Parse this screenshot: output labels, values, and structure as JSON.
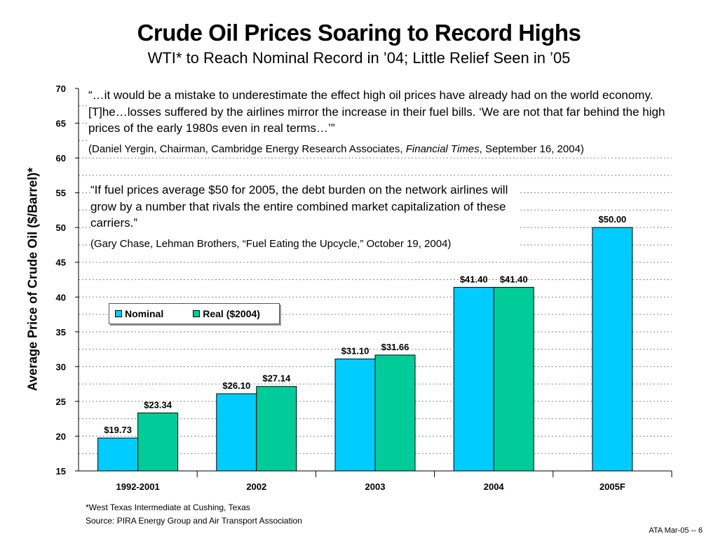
{
  "slide": {
    "title": "Crude Oil Prices Soaring to Record Highs",
    "subtitle": "WTI* to Reach Nominal Record in ’04; Little Relief Seen in ’05",
    "footnote": "*West Texas Intermediate at Cushing, Texas",
    "source": "Source: PIRA Energy Group and Air Transport Association",
    "slide_number": "ATA Mar-05 -- 6"
  },
  "quotes": [
    {
      "text": "“…it would be a mistake to underestimate the effect high oil prices have already had on the world economy. [T]he…losses suffered by the airlines mirror the increase in their fuel bills. ‘We are not that far behind the high prices of the early 1980s even in real terms…’”",
      "attribution_prefix": "(Daniel Yergin, Chairman, Cambridge Energy Research Associates, ",
      "attribution_publication": "Financial Times",
      "attribution_suffix": ", September 16, 2004)"
    },
    {
      "text": "“If fuel prices average $50 for 2005, the debt burden on the network airlines will grow by a number that rivals the entire combined market capitalization of these carriers.”",
      "attribution": "(Gary Chase, Lehman Brothers, “Fuel Eating the Upcycle,” October 19, 2004)"
    }
  ],
  "chart_data": {
    "type": "bar",
    "title": "",
    "xlabel": "",
    "ylabel": "Average Price of Crude Oil ($/Barrel)*",
    "ylim": [
      15,
      70
    ],
    "yticks": [
      15,
      20,
      25,
      30,
      35,
      40,
      45,
      50,
      55,
      60,
      65,
      70
    ],
    "grid": "dotted horizontal gridlines",
    "legend_position": "left, middle",
    "categories": [
      "1992-2001",
      "2002",
      "2003",
      "2004",
      "2005F"
    ],
    "series": [
      {
        "name": "Nominal",
        "color": "#00CCFF",
        "values": [
          19.73,
          26.1,
          31.1,
          41.4,
          50.0
        ],
        "labels": [
          "$19.73",
          "$26.10",
          "$31.10",
          "$41.40",
          "$50.00"
        ]
      },
      {
        "name": "Real ($2004)",
        "color": "#00CC99",
        "values": [
          23.34,
          27.14,
          31.66,
          41.4,
          null
        ],
        "labels": [
          "$23.34",
          "$27.14",
          "$31.66",
          "$41.40",
          null
        ]
      }
    ]
  }
}
